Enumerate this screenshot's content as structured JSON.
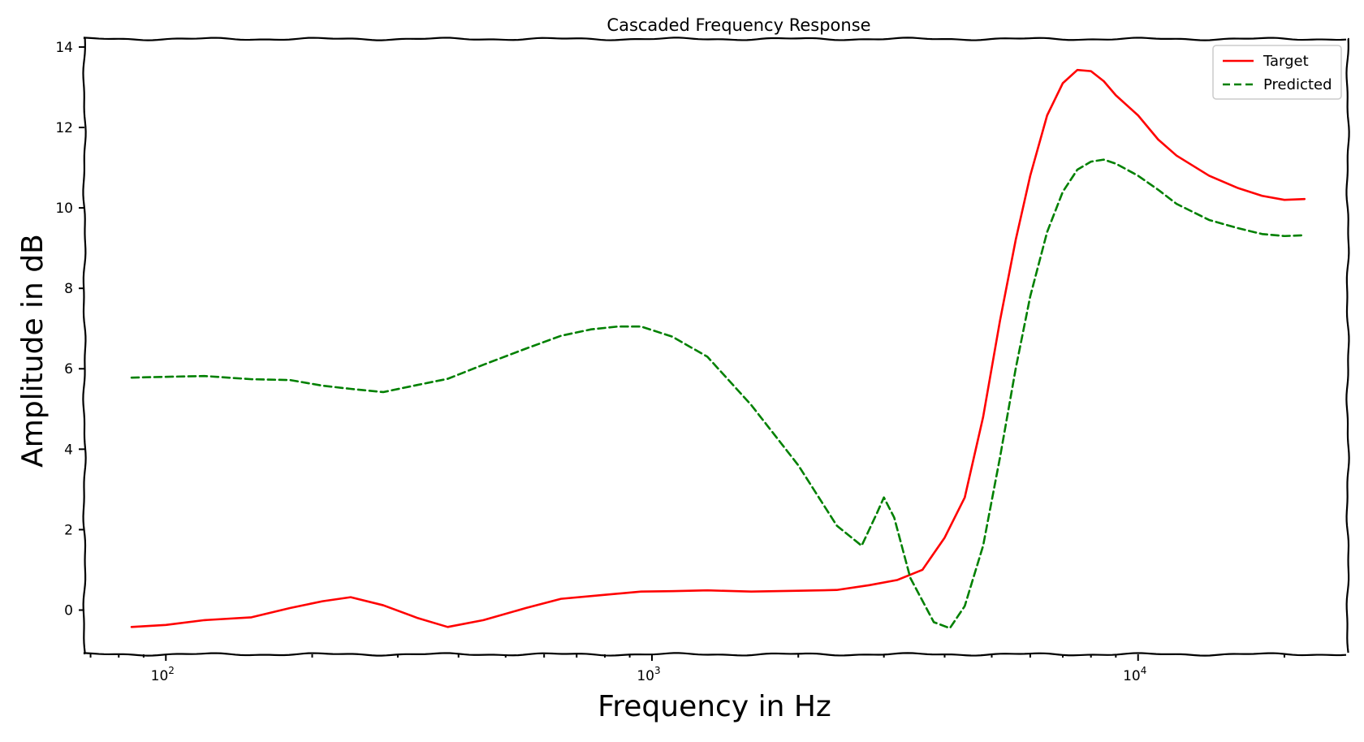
{
  "chart_data": {
    "type": "line",
    "title": "Cascaded Frequency Response",
    "xlabel": "Frequency in Hz",
    "ylabel": "Amplitude in dB",
    "xscale": "log",
    "xlim": [
      68,
      27000
    ],
    "ylim": [
      -1.1,
      14.2
    ],
    "x_ticks": [
      {
        "value": 100,
        "base": "10",
        "exp": "2"
      },
      {
        "value": 1000,
        "base": "10",
        "exp": "3"
      },
      {
        "value": 10000,
        "base": "10",
        "exp": "4"
      }
    ],
    "y_ticks": [
      0,
      2,
      4,
      6,
      8,
      10,
      12,
      14
    ],
    "grid": false,
    "legend": "top-right",
    "series": [
      {
        "name": "Target",
        "color": "#ff0000",
        "dash": "solid",
        "x": [
          85,
          100,
          120,
          150,
          180,
          210,
          240,
          280,
          330,
          380,
          450,
          550,
          650,
          800,
          950,
          1100,
          1300,
          1600,
          2000,
          2400,
          2800,
          3200,
          3600,
          4000,
          4400,
          4800,
          5200,
          5600,
          6000,
          6500,
          7000,
          7500,
          8000,
          8500,
          9000,
          10000,
          11000,
          12000,
          14000,
          16000,
          18000,
          20000,
          22000
        ],
        "y": [
          -0.42,
          -0.37,
          -0.25,
          -0.18,
          0.05,
          0.22,
          0.32,
          0.12,
          -0.2,
          -0.42,
          -0.25,
          0.05,
          0.28,
          0.38,
          0.46,
          0.47,
          0.49,
          0.46,
          0.48,
          0.5,
          0.62,
          0.75,
          1.0,
          1.8,
          2.8,
          4.8,
          7.2,
          9.2,
          10.8,
          12.3,
          13.1,
          13.43,
          13.4,
          13.15,
          12.8,
          12.3,
          11.7,
          11.3,
          10.8,
          10.5,
          10.3,
          10.2,
          10.22
        ]
      },
      {
        "name": "Predicted",
        "color": "#008000",
        "dash": "dashed",
        "x": [
          85,
          100,
          120,
          150,
          180,
          210,
          240,
          280,
          330,
          380,
          450,
          550,
          650,
          750,
          850,
          950,
          1100,
          1300,
          1600,
          2000,
          2400,
          2700,
          2900,
          3000,
          3150,
          3400,
          3800,
          4100,
          4400,
          4800,
          5200,
          5600,
          6000,
          6500,
          7000,
          7500,
          8000,
          8500,
          9000,
          10000,
          11000,
          12000,
          14000,
          16000,
          18000,
          20000,
          22000
        ],
        "y": [
          5.78,
          5.8,
          5.82,
          5.74,
          5.72,
          5.58,
          5.5,
          5.42,
          5.6,
          5.75,
          6.1,
          6.5,
          6.82,
          6.98,
          7.05,
          7.05,
          6.8,
          6.3,
          5.1,
          3.6,
          2.1,
          1.6,
          2.4,
          2.8,
          2.3,
          0.8,
          -0.3,
          -0.45,
          0.1,
          1.6,
          3.8,
          6.0,
          7.8,
          9.4,
          10.4,
          10.95,
          11.15,
          11.2,
          11.1,
          10.8,
          10.45,
          10.1,
          9.7,
          9.5,
          9.35,
          9.3,
          9.32
        ]
      }
    ]
  }
}
